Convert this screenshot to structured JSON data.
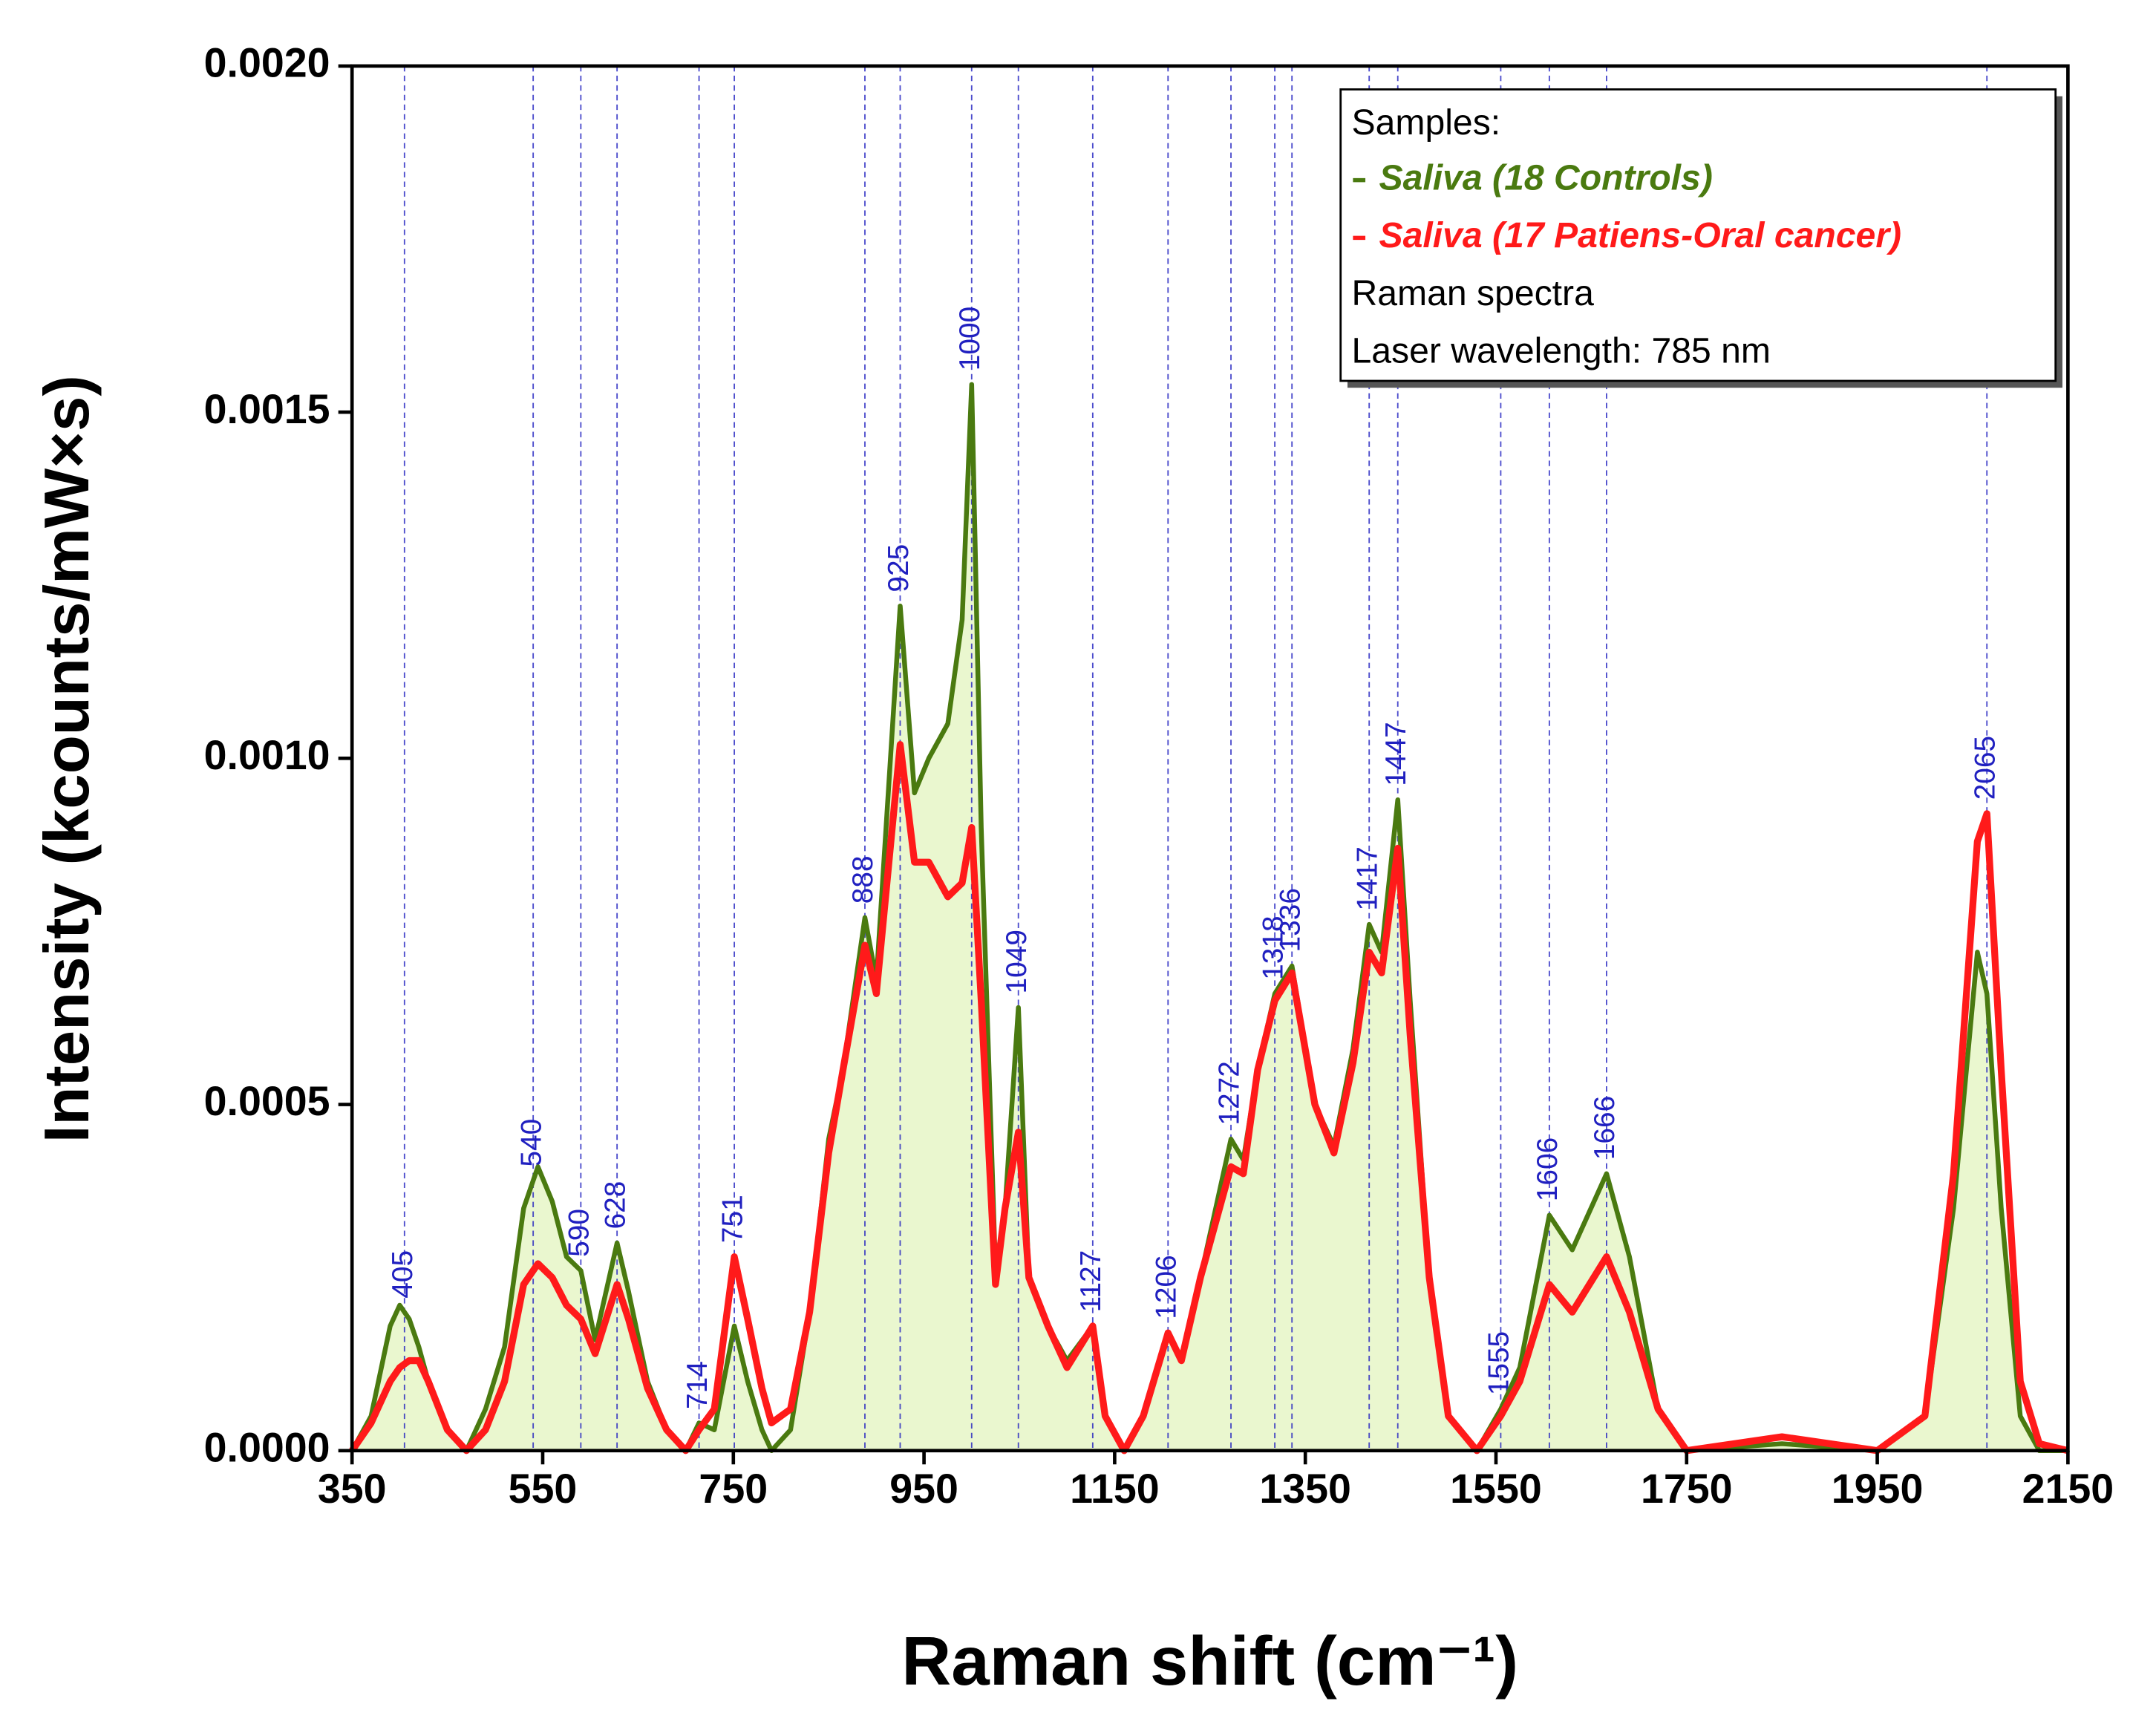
{
  "chart_data": {
    "type": "line",
    "x_label": "Raman shift (cm⁻¹)",
    "y_label": "Intensity (kcounts/mW×s)",
    "xlim": [
      350,
      2150
    ],
    "xticks": [
      350,
      550,
      750,
      950,
      1150,
      1350,
      1550,
      1750,
      1950,
      2150
    ],
    "ylim": [
      0,
      0.002
    ],
    "yticks": [
      {
        "value": 0,
        "label": "0.0000"
      },
      {
        "value": 0.0005,
        "label": "0.0005"
      },
      {
        "value": 0.001,
        "label": "0.0010"
      },
      {
        "value": 0.0015,
        "label": "0.0015"
      },
      {
        "value": 0.002,
        "label": "0.0020"
      }
    ],
    "legend_title": "Samples:",
    "notes": [
      "Raman spectra",
      "Laser wavelength: 785 nm"
    ],
    "legend_position": "upper right",
    "fill_color": "#eaf7cf",
    "peak_color": "#2020c0",
    "peaks": [
      405,
      540,
      590,
      628,
      714,
      751,
      888,
      925,
      1000,
      1049,
      1127,
      1206,
      1272,
      1318,
      1336,
      1417,
      1447,
      1555,
      1606,
      1666,
      2065
    ],
    "x": [
      350,
      370,
      390,
      400,
      410,
      420,
      430,
      450,
      470,
      490,
      510,
      530,
      545,
      560,
      575,
      590,
      605,
      628,
      640,
      660,
      680,
      700,
      714,
      730,
      751,
      765,
      780,
      790,
      810,
      830,
      850,
      865,
      888,
      900,
      925,
      940,
      955,
      975,
      990,
      1000,
      1010,
      1025,
      1035,
      1049,
      1060,
      1080,
      1100,
      1127,
      1140,
      1160,
      1180,
      1206,
      1220,
      1240,
      1272,
      1285,
      1300,
      1318,
      1336,
      1360,
      1380,
      1400,
      1417,
      1430,
      1447,
      1460,
      1480,
      1500,
      1530,
      1555,
      1575,
      1606,
      1630,
      1666,
      1690,
      1720,
      1750,
      1850,
      1950,
      2000,
      2030,
      2055,
      2065,
      2080,
      2100,
      2120,
      2150
    ],
    "series": [
      {
        "name": "Saliva (18 Controls)",
        "color": "#4a7a10",
        "values": [
          0,
          5e-05,
          0.00018,
          0.00021,
          0.00019,
          0.00015,
          0.0001,
          3e-05,
          0,
          6e-05,
          0.00015,
          0.00035,
          0.00041,
          0.00036,
          0.00028,
          0.00026,
          0.00016,
          0.0003,
          0.00023,
          0.0001,
          3e-05,
          0,
          4e-05,
          3e-05,
          0.00018,
          0.0001,
          3e-05,
          0,
          3e-05,
          0.0002,
          0.00045,
          0.00055,
          0.00077,
          0.00068,
          0.00122,
          0.00095,
          0.001,
          0.00105,
          0.0012,
          0.00154,
          0.0009,
          0.00026,
          0.00035,
          0.00064,
          0.00025,
          0.00018,
          0.00013,
          0.00018,
          5e-05,
          0,
          5e-05,
          0.00017,
          0.00013,
          0.00025,
          0.00045,
          0.00042,
          0.00055,
          0.00066,
          0.0007,
          0.0005,
          0.00044,
          0.00058,
          0.00076,
          0.00072,
          0.00094,
          0.00065,
          0.00025,
          5e-05,
          0,
          6e-05,
          0.00012,
          0.00034,
          0.00029,
          0.0004,
          0.00028,
          6e-05,
          0,
          1e-05,
          0,
          5e-05,
          0.00035,
          0.00072,
          0.00066,
          0.00035,
          5e-05,
          0,
          0
        ]
      },
      {
        "name": "Saliva (17 Patiens-Oral cancer)",
        "color": "#ff1a1a",
        "values": [
          0,
          4e-05,
          0.0001,
          0.00012,
          0.00013,
          0.00013,
          0.0001,
          3e-05,
          0,
          3e-05,
          0.0001,
          0.00024,
          0.00027,
          0.00025,
          0.00021,
          0.00019,
          0.00014,
          0.00024,
          0.00019,
          9e-05,
          3e-05,
          0,
          3e-05,
          6e-05,
          0.00028,
          0.00019,
          9e-05,
          4e-05,
          6e-05,
          0.0002,
          0.00043,
          0.00055,
          0.00073,
          0.00066,
          0.00102,
          0.00085,
          0.00085,
          0.0008,
          0.00082,
          0.0009,
          0.00065,
          0.00024,
          0.00035,
          0.00046,
          0.00025,
          0.00018,
          0.00012,
          0.00018,
          5e-05,
          0,
          5e-05,
          0.00017,
          0.00013,
          0.00025,
          0.00041,
          0.0004,
          0.00055,
          0.00065,
          0.00069,
          0.0005,
          0.00043,
          0.00056,
          0.00072,
          0.00069,
          0.00087,
          0.0006,
          0.00025,
          5e-05,
          0,
          5e-05,
          0.0001,
          0.00024,
          0.0002,
          0.00028,
          0.0002,
          6e-05,
          0,
          2e-05,
          0,
          5e-05,
          0.0004,
          0.00088,
          0.00092,
          0.00055,
          0.0001,
          1e-05,
          0
        ]
      }
    ]
  }
}
